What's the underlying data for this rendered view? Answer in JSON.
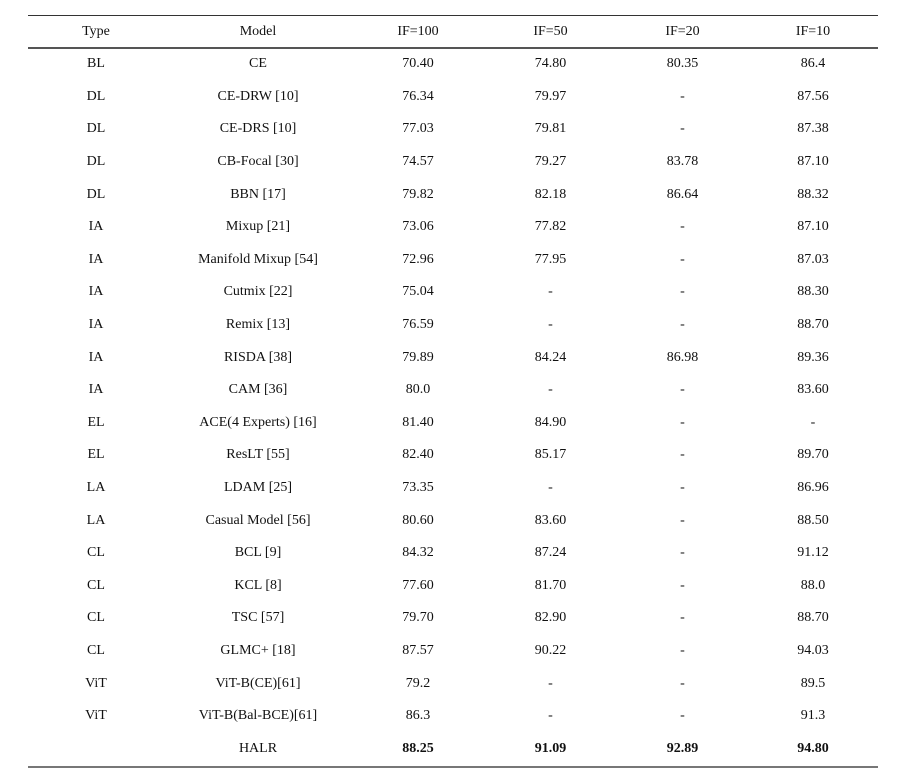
{
  "headers": [
    "Type",
    "Model",
    "IF=100",
    "IF=50",
    "IF=20",
    "IF=10"
  ],
  "rows": [
    [
      "BL",
      "CE",
      "70.40",
      "74.80",
      "80.35",
      "86.4"
    ],
    [
      "DL",
      "CE-DRW [10]",
      "76.34",
      "79.97",
      "-",
      "87.56"
    ],
    [
      "DL",
      "CE-DRS [10]",
      "77.03",
      "79.81",
      "-",
      "87.38"
    ],
    [
      "DL",
      "CB-Focal [30]",
      "74.57",
      "79.27",
      "83.78",
      "87.10"
    ],
    [
      "DL",
      "BBN [17]",
      "79.82",
      "82.18",
      "86.64",
      "88.32"
    ],
    [
      "IA",
      "Mixup [21]",
      "73.06",
      "77.82",
      "-",
      "87.10"
    ],
    [
      "IA",
      "Manifold Mixup [54]",
      "72.96",
      "77.95",
      "-",
      "87.03"
    ],
    [
      "IA",
      "Cutmix [22]",
      "75.04",
      "-",
      "-",
      "88.30"
    ],
    [
      "IA",
      "Remix [13]",
      "76.59",
      "-",
      "-",
      "88.70"
    ],
    [
      "IA",
      "RISDA [38]",
      "79.89",
      "84.24",
      "86.98",
      "89.36"
    ],
    [
      "IA",
      "CAM [36]",
      "80.0",
      "-",
      "-",
      "83.60"
    ],
    [
      "EL",
      "ACE(4 Experts) [16]",
      "81.40",
      "84.90",
      "-",
      "-"
    ],
    [
      "EL",
      "ResLT [55]",
      "82.40",
      "85.17",
      "-",
      "89.70"
    ],
    [
      "LA",
      "LDAM [25]",
      "73.35",
      "-",
      "-",
      "86.96"
    ],
    [
      "LA",
      "Casual Model [56]",
      "80.60",
      "83.60",
      "-",
      "88.50"
    ],
    [
      "CL",
      "BCL [9]",
      "84.32",
      "87.24",
      "-",
      "91.12"
    ],
    [
      "CL",
      "KCL [8]",
      "77.60",
      "81.70",
      "-",
      "88.0"
    ],
    [
      "CL",
      "TSC [57]",
      "79.70",
      "82.90",
      "-",
      "88.70"
    ],
    [
      "CL",
      "GLMC+ [18]",
      "87.57",
      "90.22",
      "-",
      "94.03"
    ],
    [
      "ViT",
      "ViT-B(CE)[61]",
      "79.2",
      "-",
      "-",
      "89.5"
    ],
    [
      "ViT",
      "ViT-B(Bal-BCE)[61]",
      "86.3",
      "-",
      "-",
      "91.3"
    ],
    [
      "",
      "HALR",
      "88.25",
      "91.09",
      "92.89",
      "94.80"
    ]
  ],
  "best_row_index": 21
}
